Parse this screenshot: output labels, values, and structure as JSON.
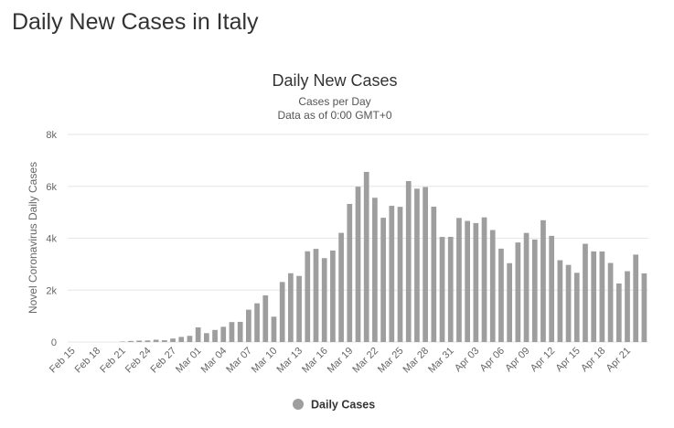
{
  "page": {
    "heading": "Daily New Cases in Italy"
  },
  "chart_data": {
    "type": "bar",
    "title": "Daily New Cases",
    "subtitle_lines": [
      "Cases per Day",
      "Data as of 0:00 GMT+0"
    ],
    "ylabel": "Novel Coronavirus Daily Cases",
    "xlabel": "",
    "ylim": [
      0,
      8000
    ],
    "yticks": [
      0,
      2000,
      4000,
      6000,
      8000
    ],
    "ytick_labels": [
      "0",
      "2k",
      "4k",
      "6k",
      "8k"
    ],
    "grid": true,
    "legend_position": "bottom-center",
    "bar_color": "#9e9e9e",
    "categories": [
      "Feb 15",
      "Feb 16",
      "Feb 17",
      "Feb 18",
      "Feb 19",
      "Feb 20",
      "Feb 21",
      "Feb 22",
      "Feb 23",
      "Feb 24",
      "Feb 25",
      "Feb 26",
      "Feb 27",
      "Feb 28",
      "Feb 29",
      "Mar 01",
      "Mar 02",
      "Mar 03",
      "Mar 04",
      "Mar 05",
      "Mar 06",
      "Mar 07",
      "Mar 08",
      "Mar 09",
      "Mar 10",
      "Mar 11",
      "Mar 12",
      "Mar 13",
      "Mar 14",
      "Mar 15",
      "Mar 16",
      "Mar 17",
      "Mar 18",
      "Mar 19",
      "Mar 20",
      "Mar 21",
      "Mar 22",
      "Mar 23",
      "Mar 24",
      "Mar 25",
      "Mar 26",
      "Mar 27",
      "Mar 28",
      "Mar 29",
      "Mar 30",
      "Mar 31",
      "Apr 01",
      "Apr 02",
      "Apr 03",
      "Apr 04",
      "Apr 05",
      "Apr 06",
      "Apr 07",
      "Apr 08",
      "Apr 09",
      "Apr 10",
      "Apr 11",
      "Apr 12",
      "Apr 13",
      "Apr 14",
      "Apr 15",
      "Apr 16",
      "Apr 17",
      "Apr 18",
      "Apr 19",
      "Apr 20",
      "Apr 21",
      "Apr 22",
      "Apr 23"
    ],
    "x_tick_labels": [
      "Feb 15",
      "Feb 18",
      "Feb 21",
      "Feb 24",
      "Feb 27",
      "Mar 01",
      "Mar 04",
      "Mar 07",
      "Mar 10",
      "Mar 13",
      "Mar 16",
      "Mar 19",
      "Mar 22",
      "Mar 25",
      "Mar 28",
      "Mar 31",
      "Apr 03",
      "Apr 06",
      "Apr 09",
      "Apr 12",
      "Apr 15",
      "Apr 18",
      "Apr 21"
    ],
    "series": [
      {
        "name": "Daily Cases",
        "values": [
          0,
          0,
          0,
          0,
          0,
          0,
          17,
          42,
          55,
          60,
          89,
          69,
          135,
          197,
          239,
          564,
          342,
          466,
          587,
          769,
          778,
          1247,
          1492,
          1797,
          977,
          2313,
          2651,
          2547,
          3497,
          3590,
          3233,
          3526,
          4207,
          5322,
          5986,
          6557,
          5560,
          4789,
          5249,
          5210,
          6203,
          5909,
          5974,
          5217,
          4050,
          4053,
          4782,
          4668,
          4585,
          4805,
          4316,
          3599,
          3039,
          3836,
          4204,
          3951,
          4694,
          4092,
          3153,
          2972,
          2667,
          3786,
          3493,
          3491,
          3047,
          2256,
          2729,
          3370,
          2646
        ]
      }
    ]
  }
}
